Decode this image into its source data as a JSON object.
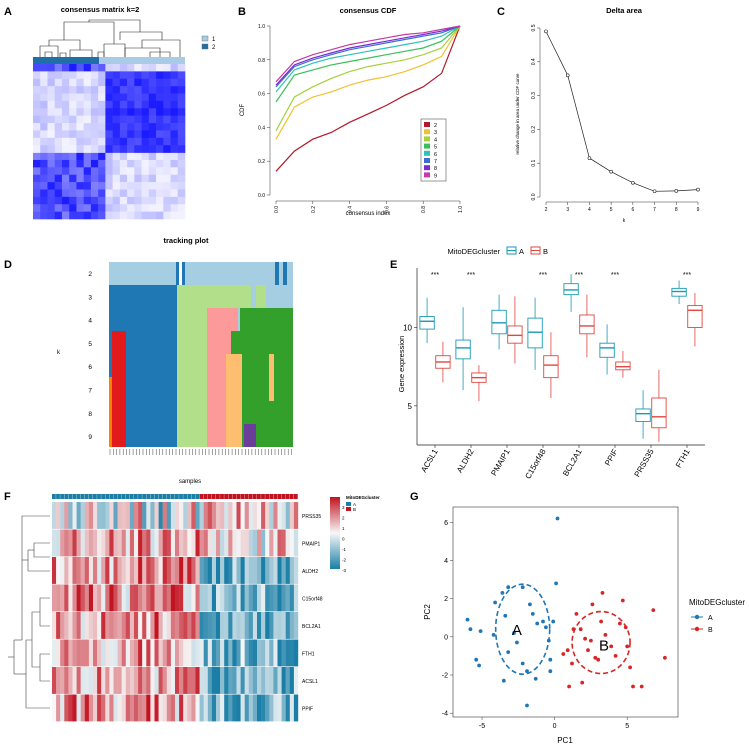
{
  "panels": {
    "A": "A",
    "B": "B",
    "C": "C",
    "D": "D",
    "E": "E",
    "F": "F",
    "G": "G"
  },
  "panel_a": {
    "title": "consensus matrix k=2",
    "legend": [
      "1",
      "2"
    ]
  },
  "chart_data": [
    {
      "type": "line",
      "title": "consensus CDF",
      "xlabel": "consensus index",
      "ylabel": "CDF",
      "xlim": [
        0,
        1
      ],
      "ylim": [
        0,
        1
      ],
      "xticks": [
        "0.0",
        "0.2",
        "0.4",
        "0.6",
        "0.8",
        "1.0"
      ],
      "yticks": [
        "0.0",
        "0.2",
        "0.4",
        "0.6",
        "0.8",
        "1.0"
      ],
      "x": [
        0,
        0.1,
        0.2,
        0.3,
        0.4,
        0.5,
        0.6,
        0.7,
        0.8,
        0.9,
        1.0
      ],
      "series": [
        {
          "name": "2",
          "values": [
            0.14,
            0.26,
            0.33,
            0.37,
            0.43,
            0.48,
            0.53,
            0.59,
            0.64,
            0.72,
            1.0
          ]
        },
        {
          "name": "3",
          "values": [
            0.33,
            0.52,
            0.58,
            0.61,
            0.65,
            0.68,
            0.7,
            0.73,
            0.77,
            0.82,
            1.0
          ]
        },
        {
          "name": "4",
          "values": [
            0.38,
            0.58,
            0.64,
            0.69,
            0.73,
            0.76,
            0.78,
            0.8,
            0.83,
            0.87,
            1.0
          ]
        },
        {
          "name": "5",
          "values": [
            0.55,
            0.71,
            0.74,
            0.77,
            0.79,
            0.81,
            0.83,
            0.85,
            0.87,
            0.91,
            1.0
          ]
        },
        {
          "name": "6",
          "values": [
            0.61,
            0.74,
            0.78,
            0.81,
            0.83,
            0.85,
            0.87,
            0.89,
            0.91,
            0.94,
            1.0
          ]
        },
        {
          "name": "7",
          "values": [
            0.64,
            0.76,
            0.8,
            0.83,
            0.86,
            0.88,
            0.9,
            0.92,
            0.94,
            0.96,
            1.0
          ]
        },
        {
          "name": "8",
          "values": [
            0.65,
            0.77,
            0.81,
            0.84,
            0.87,
            0.89,
            0.91,
            0.93,
            0.95,
            0.97,
            1.0
          ]
        },
        {
          "name": "9",
          "values": [
            0.67,
            0.79,
            0.83,
            0.86,
            0.89,
            0.91,
            0.93,
            0.95,
            0.96,
            0.98,
            1.0
          ]
        }
      ]
    },
    {
      "type": "line",
      "title": "Delta area",
      "xlabel": "k",
      "ylabel": "relative change in area under CDF curve",
      "x": [
        2,
        3,
        4,
        5,
        6,
        7,
        8,
        9
      ],
      "values": [
        0.49,
        0.36,
        0.115,
        0.075,
        0.042,
        0.017,
        0.018,
        0.022
      ],
      "xlim": [
        2,
        9
      ],
      "ylim": [
        0,
        0.5
      ],
      "yticks": [
        "0.0",
        "0.1",
        "0.2",
        "0.3",
        "0.4",
        "0.5"
      ]
    },
    {
      "type": "heatmap",
      "title": "tracking plot",
      "xlabel": "samples",
      "ylabel": "k",
      "rows": [
        "2",
        "3",
        "4",
        "5",
        "6",
        "7",
        "8",
        "9"
      ]
    },
    {
      "type": "box",
      "legend_title": "MitoDEGcluster",
      "legend": [
        "A",
        "B"
      ],
      "ylabel": "Gene expression",
      "yticks": [
        "5",
        "10"
      ],
      "ylim": [
        2.5,
        13.8
      ],
      "categories": [
        "ACSL1",
        "ALDH2",
        "PMAIP1",
        "C15orf48",
        "BCL2A1",
        "PPIF",
        "PRSS35",
        "FTH1"
      ],
      "significance": [
        "***",
        "***",
        "",
        "***",
        "***",
        "***",
        "",
        "***"
      ],
      "series": [
        {
          "name": "A",
          "boxes": [
            [
              9.0,
              9.9,
              10.4,
              10.7,
              11.9
            ],
            [
              6.0,
              8.0,
              8.7,
              9.2,
              11.3
            ],
            [
              8.6,
              9.6,
              10.3,
              11.1,
              12.1
            ],
            [
              7.3,
              8.7,
              9.7,
              10.6,
              11.9
            ],
            [
              11.0,
              12.1,
              12.4,
              12.8,
              13.4
            ],
            [
              7.0,
              8.1,
              8.7,
              9.0,
              10.2
            ],
            [
              2.9,
              4.0,
              4.5,
              4.8,
              6.0
            ],
            [
              11.5,
              12.0,
              12.3,
              12.5,
              13.0
            ]
          ]
        },
        {
          "name": "B",
          "boxes": [
            [
              6.5,
              7.4,
              7.8,
              8.2,
              9.1
            ],
            [
              5.3,
              6.5,
              6.8,
              7.1,
              7.6
            ],
            [
              7.7,
              9.0,
              9.5,
              10.1,
              12.0
            ],
            [
              5.5,
              6.8,
              7.6,
              8.2,
              9.7
            ],
            [
              8.1,
              9.6,
              10.1,
              10.8,
              12.1
            ],
            [
              6.8,
              7.3,
              7.5,
              7.8,
              8.5
            ],
            [
              2.7,
              3.6,
              4.3,
              5.5,
              7.3
            ],
            [
              8.8,
              10.0,
              11.1,
              11.4,
              12.2
            ]
          ]
        }
      ]
    },
    {
      "type": "heatmap",
      "legend_title": "MitoDEGcluster",
      "legend": [
        "A",
        "B"
      ],
      "scale_ticks": [
        "3",
        "2",
        "1",
        "0",
        "-1",
        "-2",
        "-3"
      ],
      "rows": [
        "PRSS35",
        "PMAIP1",
        "ALDH2",
        "C15orf48",
        "BCL2A1",
        "FTH1",
        "ACSL1",
        "PPIF"
      ]
    },
    {
      "type": "scatter",
      "xlabel": "PC1",
      "ylabel": "PC2",
      "xlim": [
        -7,
        8.5
      ],
      "ylim": [
        -4.2,
        6.8
      ],
      "xticks": [
        "-5",
        "0",
        "5"
      ],
      "yticks": [
        "-4",
        "-2",
        "0",
        "2",
        "4",
        "6"
      ],
      "legend_title": "MitoDEGcluster",
      "legend": [
        "A",
        "B"
      ],
      "cluster_labels": [
        "A",
        "B"
      ],
      "series": [
        {
          "name": "A",
          "points": [
            [
              -6,
              0.9
            ],
            [
              -5.8,
              0.4
            ],
            [
              -5.1,
              0.3
            ],
            [
              -5.4,
              -1.2
            ],
            [
              -5.2,
              -1.5
            ],
            [
              -4.2,
              0.1
            ],
            [
              -4.1,
              1.8
            ],
            [
              -3.6,
              2.3
            ],
            [
              -3.2,
              2.6
            ],
            [
              -3.4,
              1.1
            ],
            [
              -2.8,
              0.2
            ],
            [
              -2.6,
              -0.3
            ],
            [
              -2.2,
              2.6
            ],
            [
              -1.7,
              1.7
            ],
            [
              -1.5,
              1.2
            ],
            [
              -1.2,
              0.7
            ],
            [
              -0.8,
              0.8
            ],
            [
              -0.6,
              0.5
            ],
            [
              -0.4,
              -0.2
            ],
            [
              -0.1,
              0.8
            ],
            [
              -3.2,
              -0.8
            ],
            [
              -2.2,
              -1.4
            ],
            [
              -1.9,
              -1.8
            ],
            [
              -1.3,
              -2.2
            ],
            [
              -1.9,
              -3.6
            ],
            [
              -0.3,
              -1.2
            ],
            [
              0.1,
              2.8
            ],
            [
              0.2,
              6.2
            ],
            [
              -0.3,
              -1.8
            ],
            [
              -3.5,
              -2.3
            ]
          ]
        },
        {
          "name": "B",
          "points": [
            [
              0.6,
              -0.9
            ],
            [
              0.9,
              -0.7
            ],
            [
              1.2,
              -1.4
            ],
            [
              1.5,
              1.2
            ],
            [
              1.8,
              0.4
            ],
            [
              2.1,
              -0.1
            ],
            [
              2.3,
              -0.7
            ],
            [
              2.5,
              -0.2
            ],
            [
              2.8,
              -1.1
            ],
            [
              3.0,
              -1.2
            ],
            [
              3.2,
              0.8
            ],
            [
              3.3,
              2.3
            ],
            [
              3.5,
              0.1
            ],
            [
              3.9,
              -0.5
            ],
            [
              4.2,
              -1.0
            ],
            [
              4.5,
              0.7
            ],
            [
              4.9,
              0.5
            ],
            [
              5.0,
              -0.5
            ],
            [
              5.2,
              -1.6
            ],
            [
              5.4,
              -2.6
            ],
            [
              6.0,
              -2.6
            ],
            [
              6.8,
              1.4
            ],
            [
              7.6,
              -1.1
            ],
            [
              1.9,
              -2.4
            ],
            [
              1.0,
              -2.6
            ],
            [
              2.6,
              1.7
            ],
            [
              1.3,
              0.4
            ],
            [
              4.7,
              1.9
            ]
          ]
        }
      ]
    }
  ]
}
